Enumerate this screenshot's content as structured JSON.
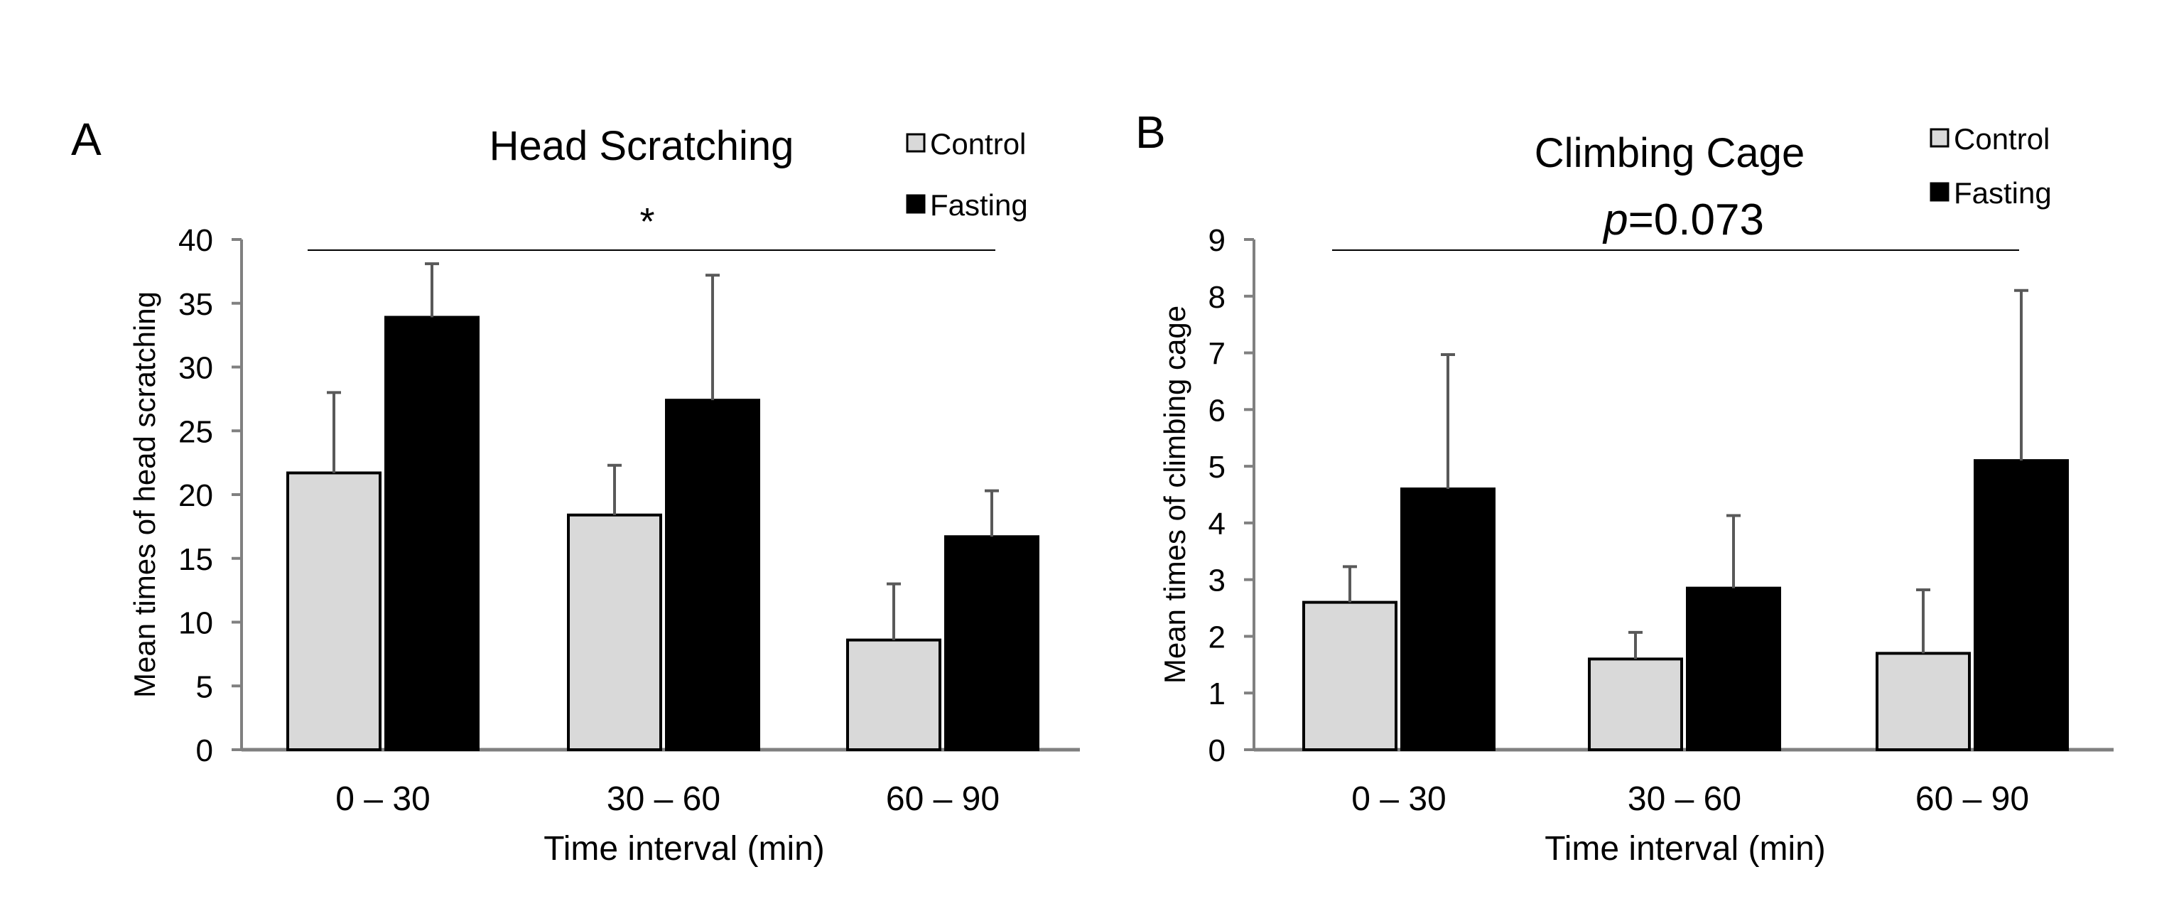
{
  "chart_data": [
    {
      "panel_label": "A",
      "type": "bar",
      "title": "Head Scratching",
      "xlabel": "Time interval (min)",
      "ylabel": "Mean times of head scratching",
      "categories": [
        "0 – 30",
        "30 – 60",
        "60 – 90"
      ],
      "ylim": [
        0,
        40
      ],
      "yticks": [
        0,
        5,
        10,
        15,
        20,
        25,
        30,
        35,
        40
      ],
      "series": [
        {
          "name": "Control",
          "values": [
            21.7,
            18.4,
            8.6
          ],
          "error": [
            6.3,
            3.9,
            4.4
          ],
          "color": "#d9d9d9"
        },
        {
          "name": "Fasting",
          "values": [
            33.9,
            27.4,
            16.7
          ],
          "error": [
            4.2,
            9.8,
            3.6
          ],
          "color": "#000000"
        }
      ],
      "significance": {
        "text": "*",
        "italic_prefix": "",
        "rest": ""
      },
      "legend": "top-right",
      "grid": false
    },
    {
      "panel_label": "B",
      "type": "bar",
      "title": "Climbing Cage",
      "xlabel": "Time interval (min)",
      "ylabel": "Mean times of climbing cage",
      "categories": [
        "0 – 30",
        "30 – 60",
        "60 – 90"
      ],
      "ylim": [
        0,
        9
      ],
      "yticks": [
        0,
        1,
        2,
        3,
        4,
        5,
        6,
        7,
        8,
        9
      ],
      "series": [
        {
          "name": "Control",
          "values": [
            2.6,
            1.6,
            1.7
          ],
          "error": [
            0.63,
            0.47,
            1.12
          ],
          "color": "#d9d9d9"
        },
        {
          "name": "Fasting",
          "values": [
            4.6,
            2.85,
            5.1
          ],
          "error": [
            2.37,
            1.28,
            3.0
          ],
          "color": "#000000"
        }
      ],
      "significance": {
        "text": "",
        "italic_prefix": "p",
        "rest": "=0.073"
      },
      "legend": "top-right",
      "grid": false
    }
  ]
}
